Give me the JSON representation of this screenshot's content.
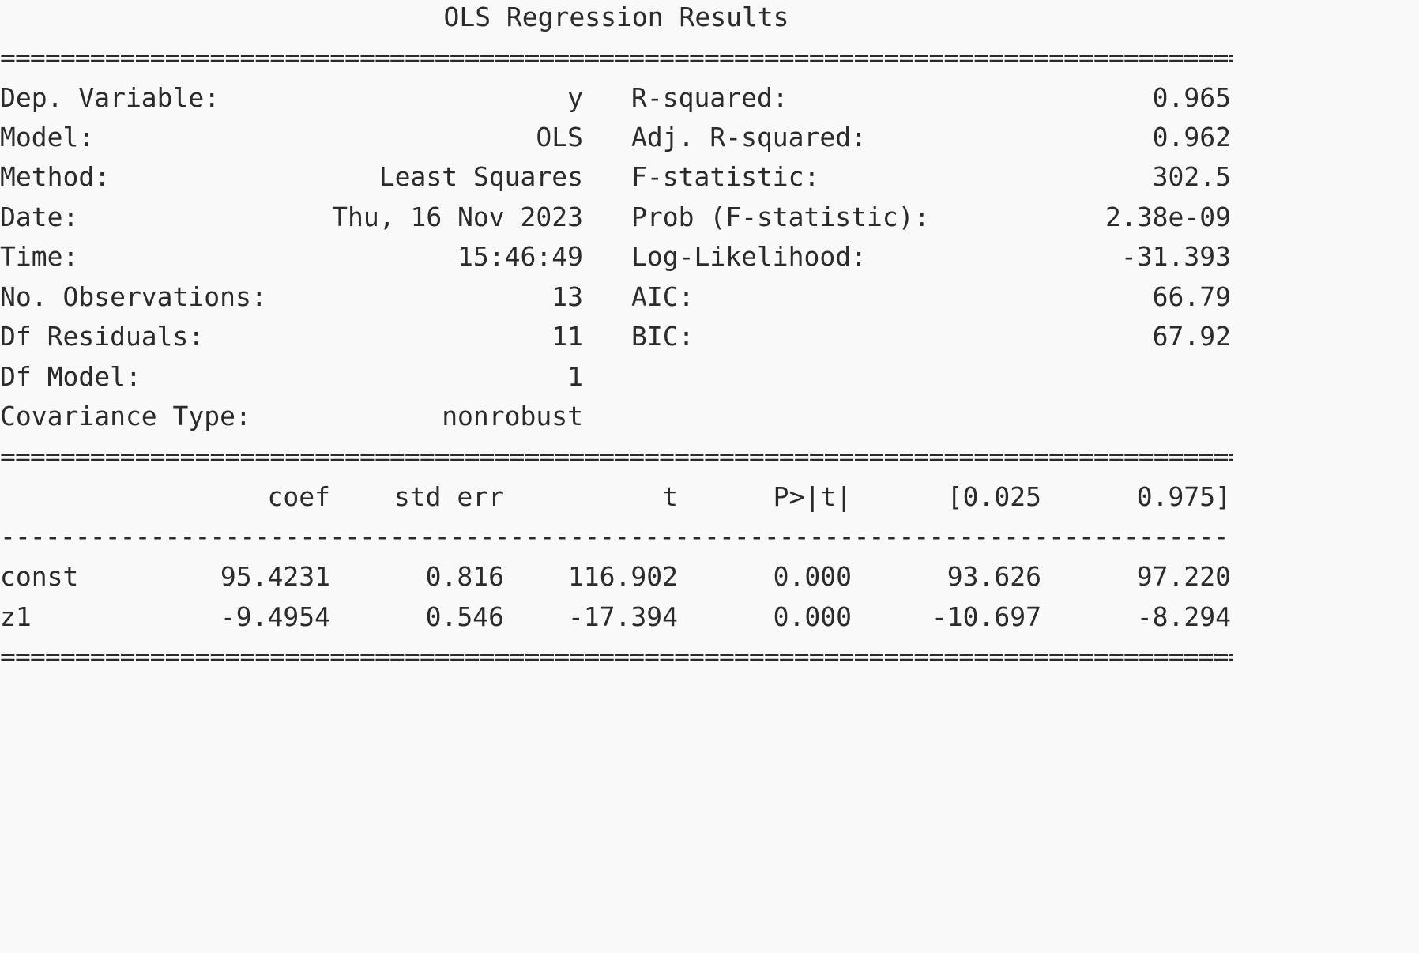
{
  "title": "OLS Regression Results",
  "rules": {
    "double": "===============================================================================================",
    "single": "-----------------------------------------------------------------------------------------------"
  },
  "summary": {
    "left": [
      {
        "label": "Dep. Variable:",
        "value": "y"
      },
      {
        "label": "Model:",
        "value": "OLS"
      },
      {
        "label": "Method:",
        "value": "Least Squares"
      },
      {
        "label": "Date:",
        "value": "Thu, 16 Nov 2023"
      },
      {
        "label": "Time:",
        "value": "15:46:49"
      },
      {
        "label": "No. Observations:",
        "value": "13"
      },
      {
        "label": "Df Residuals:",
        "value": "11"
      },
      {
        "label": "Df Model:",
        "value": "1"
      },
      {
        "label": "Covariance Type:",
        "value": "nonrobust"
      }
    ],
    "right": [
      {
        "label": "R-squared:",
        "value": "0.965"
      },
      {
        "label": "Adj. R-squared:",
        "value": "0.962"
      },
      {
        "label": "F-statistic:",
        "value": "302.5"
      },
      {
        "label": "Prob (F-statistic):",
        "value": "2.38e-09"
      },
      {
        "label": "Log-Likelihood:",
        "value": "-31.393"
      },
      {
        "label": "AIC:",
        "value": "66.79"
      },
      {
        "label": "BIC:",
        "value": "67.92"
      }
    ]
  },
  "coefficients": {
    "headers": [
      "coef",
      "std err",
      "t",
      "P>|t|",
      "[0.025",
      "0.975]"
    ],
    "rows": [
      {
        "name": "const",
        "values": [
          "95.4231",
          "0.816",
          "116.902",
          "0.000",
          "93.626",
          "97.220"
        ]
      },
      {
        "name": "z1",
        "values": [
          "-9.4954",
          "0.546",
          "-17.394",
          "0.000",
          "-10.697",
          "-8.294"
        ]
      }
    ]
  }
}
